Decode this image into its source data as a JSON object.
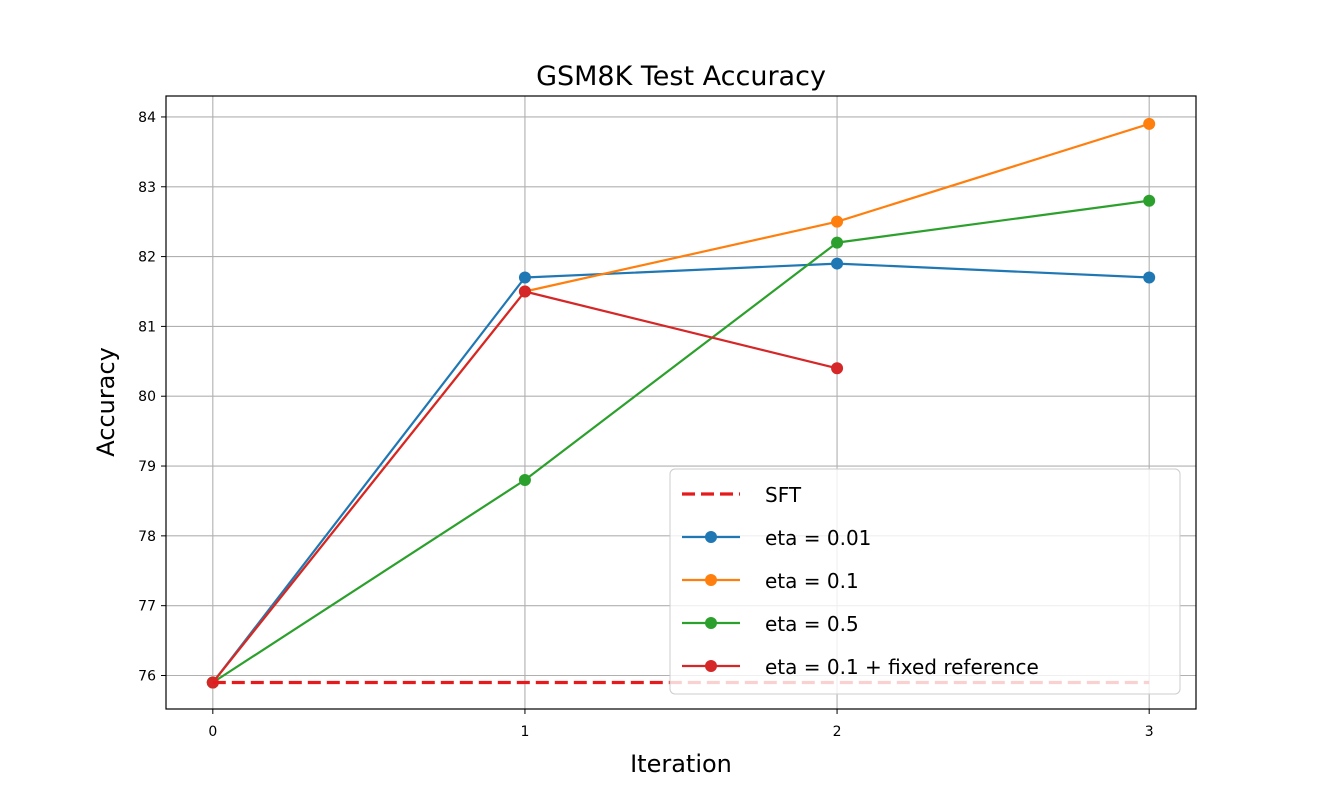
{
  "chart_data": {
    "type": "line",
    "title": "GSM8K Test Accuracy",
    "xlabel": "Iteration",
    "ylabel": "Accuracy",
    "xlim": [
      -0.15,
      3.15
    ],
    "ylim": [
      75.52,
      84.3
    ],
    "x_ticks": [
      0,
      1,
      2,
      3
    ],
    "y_ticks": [
      76,
      77,
      78,
      79,
      80,
      81,
      82,
      83,
      84
    ],
    "grid": true,
    "legend_position": "lower-right",
    "series": [
      {
        "name": "SFT",
        "style": "dashed",
        "color": "#e41a1c",
        "marker": false,
        "x": [
          0,
          3
        ],
        "values": [
          75.9,
          75.9
        ]
      },
      {
        "name": "eta = 0.01",
        "style": "solid",
        "color": "#1f77b4",
        "marker": true,
        "x": [
          0,
          1,
          2,
          3
        ],
        "values": [
          75.9,
          81.7,
          81.9,
          81.7
        ]
      },
      {
        "name": "eta = 0.1",
        "style": "solid",
        "color": "#ff7f0e",
        "marker": true,
        "x": [
          0,
          1,
          2,
          3
        ],
        "values": [
          75.9,
          81.5,
          82.5,
          83.9
        ]
      },
      {
        "name": "eta = 0.5",
        "style": "solid",
        "color": "#2ca02c",
        "marker": true,
        "x": [
          0,
          1,
          2,
          3
        ],
        "values": [
          75.9,
          78.8,
          82.2,
          82.8
        ]
      },
      {
        "name": "eta = 0.1 + fixed reference",
        "style": "solid",
        "color": "#d62728",
        "marker": true,
        "x": [
          0,
          1,
          2
        ],
        "values": [
          75.9,
          81.5,
          80.4
        ]
      }
    ]
  }
}
